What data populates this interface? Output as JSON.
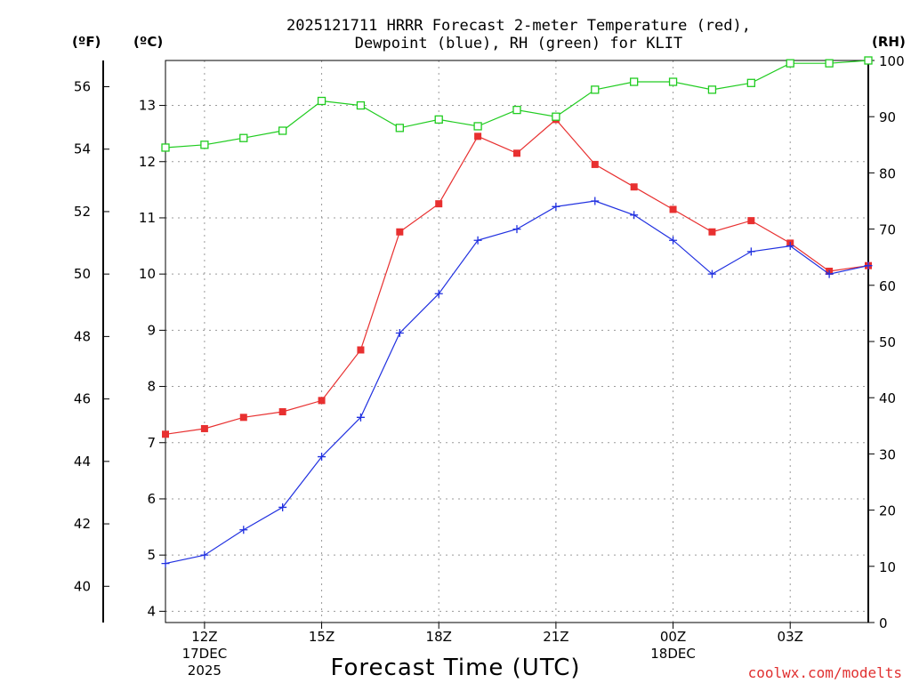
{
  "chart_data": {
    "type": "line",
    "title_line1": "2025121711 HRRR Forecast 2-meter Temperature (red),",
    "title_line2": "Dewpoint (blue), RH (green) for KLIT",
    "xlabel": "Forecast Time (UTC)",
    "credit": "coolwx.com/modelts",
    "units": {
      "fahrenheit": "(ºF)",
      "celsius": "(ºC)",
      "rh": "(RH)"
    },
    "x_range": [
      11,
      29
    ],
    "x_ticks": [
      {
        "x": 12,
        "lines": [
          "12Z",
          "17DEC",
          "2025"
        ]
      },
      {
        "x": 15,
        "lines": [
          "15Z"
        ]
      },
      {
        "x": 18,
        "lines": [
          "18Z"
        ]
      },
      {
        "x": 21,
        "lines": [
          "21Z"
        ]
      },
      {
        "x": 24,
        "lines": [
          "00Z",
          "18DEC"
        ]
      },
      {
        "x": 27,
        "lines": [
          "03Z"
        ]
      }
    ],
    "hours": [
      11,
      12,
      13,
      14,
      15,
      16,
      17,
      18,
      19,
      20,
      21,
      22,
      23,
      24,
      25,
      26,
      27,
      28,
      29
    ],
    "celsius_range": [
      3.8,
      13.8
    ],
    "celsius_ticks": [
      4,
      5,
      6,
      7,
      8,
      9,
      10,
      11,
      12,
      13
    ],
    "fahrenheit_ticks": [
      40,
      42,
      44,
      46,
      48,
      50,
      52,
      54,
      56
    ],
    "rh_range": [
      0,
      100
    ],
    "rh_ticks": [
      0,
      10,
      20,
      30,
      40,
      50,
      60,
      70,
      80,
      90,
      100
    ],
    "series": [
      {
        "name": "2-meter Temperature",
        "axis": "celsius",
        "color": "#e83030",
        "marker": "filled-square",
        "values": [
          7.15,
          7.25,
          7.45,
          7.55,
          7.75,
          8.65,
          10.75,
          11.25,
          12.45,
          12.15,
          12.75,
          11.95,
          11.55,
          11.15,
          10.75,
          10.95,
          10.55,
          10.05,
          10.15
        ]
      },
      {
        "name": "Dewpoint",
        "axis": "celsius",
        "color": "#2030e0",
        "marker": "plus",
        "values": [
          4.85,
          5.0,
          5.45,
          5.85,
          6.75,
          7.45,
          8.95,
          9.65,
          10.6,
          10.8,
          11.2,
          11.3,
          11.05,
          10.6,
          10.0,
          10.4,
          10.5,
          10.0,
          10.15
        ]
      },
      {
        "name": "RH",
        "axis": "rh",
        "color": "#20cc20",
        "marker": "open-square",
        "values": [
          84.5,
          85,
          86.2,
          87.5,
          92.8,
          92,
          88,
          89.5,
          88.3,
          91.2,
          90,
          94.8,
          96.2,
          96.2,
          94.8,
          96,
          99.5,
          99.5,
          100
        ]
      }
    ]
  }
}
